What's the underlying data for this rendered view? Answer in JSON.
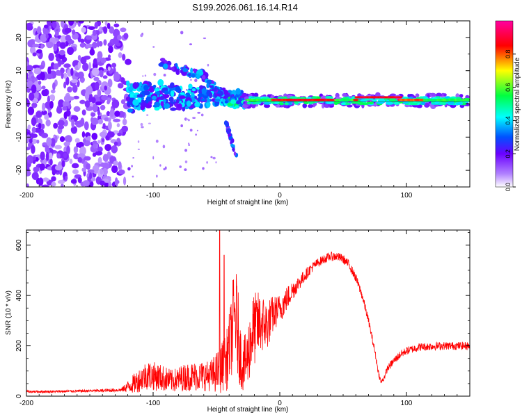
{
  "figure": {
    "title": "S199.2026.061.16.14.R14"
  },
  "chart_data": [
    {
      "type": "heatmap",
      "xlabel": "Height of straight line (km)",
      "ylabel": "Frequency (Hz)",
      "xlim": [
        -200,
        150
      ],
      "ylim": [
        -25,
        25
      ],
      "xticks": [
        -200,
        -100,
        0,
        100
      ],
      "yticks": [
        -20,
        -10,
        0,
        10,
        20
      ],
      "colorbar": {
        "label": "Normalized spectral amplitude",
        "range": [
          0,
          1
        ],
        "ticks": [
          0.0,
          0.2,
          0.4,
          0.6,
          0.8
        ],
        "tick_labels": [
          "0.0",
          "0.2",
          "0.4",
          "0.6",
          "0.8"
        ],
        "colors": [
          "#ffffff",
          "#6a00ff",
          "#0050ff",
          "#00ffff",
          "#00ff40",
          "#ffff00",
          "#ff0000",
          "#ff0090"
        ]
      },
      "features": [
        {
          "name": "scatter-noise",
          "x_range": [
            -200,
            -120
          ],
          "freq_range": [
            -25,
            25
          ],
          "amplitude": 0.1
        },
        {
          "name": "main-band",
          "x_range": [
            -120,
            -30
          ],
          "freq_center": 2,
          "freq_halfwidth": 4,
          "amplitude": 0.3
        },
        {
          "name": "upper-branch",
          "points": [
            [
              -90,
              12
            ],
            [
              -60,
              9
            ],
            [
              -50,
              5
            ],
            [
              -40,
              2
            ]
          ],
          "amplitude": 0.3
        },
        {
          "name": "lower-branch",
          "points": [
            [
              -40,
              -8
            ],
            [
              -33,
              -16
            ]
          ],
          "amplitude": 0.25
        },
        {
          "name": "stable-carrier",
          "x_range": [
            -30,
            150
          ],
          "freq_center": 1,
          "amplitude": 0.85
        }
      ]
    },
    {
      "type": "line",
      "xlabel": "Height of straight line (km)",
      "ylabel": "SNR (10 * v/v)",
      "xlim": [
        -200,
        150
      ],
      "ylim": [
        0,
        660
      ],
      "xticks": [
        -200,
        -100,
        0,
        100
      ],
      "yticks": [
        0,
        200,
        400,
        600
      ],
      "series": [
        {
          "name": "SNR",
          "color": "#ff0000",
          "x": [
            -200,
            -180,
            -160,
            -140,
            -125,
            -115,
            -105,
            -95,
            -85,
            -75,
            -65,
            -55,
            -48,
            -42,
            -38,
            -35,
            -33,
            -30,
            -26,
            -22,
            -18,
            -14,
            -10,
            -6,
            -2,
            2,
            6,
            10,
            15,
            20,
            25,
            30,
            35,
            40,
            45,
            50,
            55,
            60,
            65,
            70,
            75,
            78,
            80,
            82,
            85,
            90,
            95,
            100,
            110,
            120,
            130,
            140,
            150
          ],
          "values": [
            18,
            18,
            20,
            22,
            25,
            50,
            85,
            75,
            60,
            75,
            80,
            80,
            100,
            140,
            240,
            330,
            250,
            120,
            140,
            250,
            280,
            290,
            280,
            320,
            340,
            360,
            390,
            420,
            450,
            480,
            510,
            530,
            545,
            555,
            555,
            545,
            520,
            470,
            400,
            300,
            180,
            90,
            55,
            70,
            110,
            140,
            165,
            180,
            195,
            198,
            200,
            200,
            200
          ],
          "amplitude": [
            5,
            5,
            5,
            6,
            8,
            40,
            60,
            55,
            45,
            55,
            60,
            60,
            90,
            120,
            160,
            200,
            180,
            100,
            120,
            150,
            140,
            120,
            100,
            80,
            60,
            55,
            50,
            40,
            30,
            25,
            20,
            18,
            18,
            18,
            18,
            18,
            18,
            18,
            18,
            16,
            14,
            12,
            10,
            12,
            14,
            15,
            16,
            16,
            16,
            16,
            16,
            16,
            16
          ],
          "spikes": [
            [
              -47.5,
              660
            ],
            [
              -44,
              560
            ],
            [
              -37,
              460
            ]
          ]
        }
      ]
    }
  ]
}
